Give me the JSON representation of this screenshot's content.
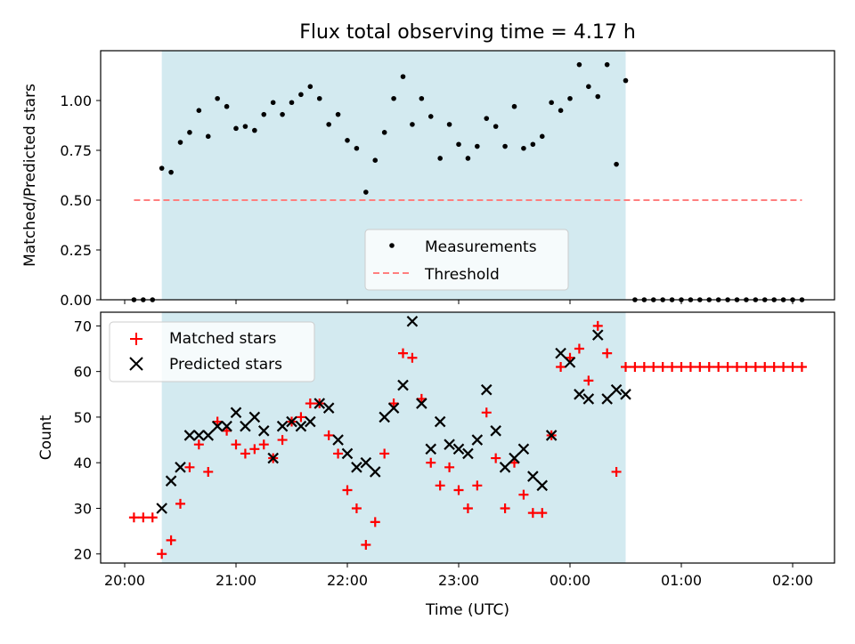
{
  "figure": {
    "title": "Flux total observing time = 4.17 h"
  },
  "chart_data": [
    {
      "type": "scatter",
      "title": "Flux total observing time = 4.17 h",
      "xlabel": "",
      "ylabel": "Matched/Predicted stars",
      "ylim": [
        0,
        1.25
      ],
      "yticks": [
        "0.00",
        "0.25",
        "0.50",
        "0.75",
        "1.00"
      ],
      "shaded_region": {
        "x": [
          "20:20",
          "00:30"
        ],
        "color": "#d3eaf0"
      },
      "legend": {
        "placement": "lower-center",
        "entries": [
          "Measurements",
          "Threshold"
        ]
      },
      "series": [
        {
          "name": "Measurements",
          "marker": "dot",
          "color": "#000000",
          "x": [
            "20:05",
            "20:10",
            "20:15",
            "20:20",
            "20:25",
            "20:30",
            "20:35",
            "20:40",
            "20:45",
            "20:50",
            "20:55",
            "21:00",
            "21:05",
            "21:10",
            "21:15",
            "21:20",
            "21:25",
            "21:30",
            "21:35",
            "21:40",
            "21:45",
            "21:50",
            "21:55",
            "22:00",
            "22:05",
            "22:10",
            "22:15",
            "22:20",
            "22:25",
            "22:30",
            "22:35",
            "22:40",
            "22:45",
            "22:50",
            "22:55",
            "23:00",
            "23:05",
            "23:10",
            "23:15",
            "23:20",
            "23:25",
            "23:30",
            "23:35",
            "23:40",
            "23:45",
            "23:50",
            "23:55",
            "00:00",
            "00:05",
            "00:10",
            "00:15",
            "00:20",
            "00:25",
            "00:30",
            "00:35",
            "00:40",
            "00:45",
            "00:50",
            "00:55",
            "01:00",
            "01:05",
            "01:10",
            "01:15",
            "01:20",
            "01:25",
            "01:30",
            "01:35",
            "01:40",
            "01:45",
            "01:50",
            "01:55",
            "02:00",
            "02:05"
          ],
          "y": [
            0.0,
            0.0,
            0.0,
            0.66,
            0.64,
            0.79,
            0.84,
            0.95,
            0.82,
            1.01,
            0.97,
            0.86,
            0.87,
            0.85,
            0.93,
            0.99,
            0.93,
            0.99,
            1.03,
            1.07,
            1.01,
            0.88,
            0.93,
            0.8,
            0.76,
            0.54,
            0.7,
            0.84,
            1.01,
            1.12,
            0.88,
            1.01,
            0.92,
            0.71,
            0.88,
            0.78,
            0.71,
            0.77,
            0.91,
            0.87,
            0.77,
            0.97,
            0.76,
            0.78,
            0.82,
            0.99,
            0.95,
            1.01,
            1.18,
            1.07,
            1.02,
            1.18,
            0.68,
            1.1,
            0.0,
            0.0,
            0.0,
            0.0,
            0.0,
            0.0,
            0.0,
            0.0,
            0.0,
            0.0,
            0.0,
            0.0,
            0.0,
            0.0,
            0.0,
            0.0,
            0.0,
            0.0,
            0.0
          ]
        },
        {
          "name": "Threshold",
          "style": "dashed",
          "color": "#ff7f7f",
          "x": [
            "20:05",
            "02:05"
          ],
          "y": [
            0.5,
            0.5
          ]
        }
      ]
    },
    {
      "type": "scatter",
      "xlabel": "Time (UTC)",
      "ylabel": "Count",
      "ylim": [
        18,
        73
      ],
      "yticks": [
        "20",
        "30",
        "40",
        "50",
        "60",
        "70"
      ],
      "xticks": [
        "20:00",
        "21:00",
        "22:00",
        "23:00",
        "00:00",
        "01:00",
        "02:00"
      ],
      "shaded_region": {
        "x": [
          "20:20",
          "00:30"
        ],
        "color": "#d3eaf0"
      },
      "legend": {
        "placement": "top-left",
        "entries": [
          "Matched stars",
          "Predicted stars"
        ]
      },
      "series": [
        {
          "name": "Matched stars",
          "marker": "plus",
          "color": "#ff0000",
          "x": [
            "20:05",
            "20:10",
            "20:15",
            "20:20",
            "20:25",
            "20:30",
            "20:35",
            "20:40",
            "20:45",
            "20:50",
            "20:55",
            "21:00",
            "21:05",
            "21:10",
            "21:15",
            "21:20",
            "21:25",
            "21:30",
            "21:35",
            "21:40",
            "21:45",
            "21:50",
            "21:55",
            "22:00",
            "22:05",
            "22:10",
            "22:15",
            "22:20",
            "22:25",
            "22:30",
            "22:35",
            "22:40",
            "22:45",
            "22:50",
            "22:55",
            "23:00",
            "23:05",
            "23:10",
            "23:15",
            "23:20",
            "23:25",
            "23:30",
            "23:35",
            "23:40",
            "23:45",
            "23:50",
            "23:55",
            "00:00",
            "00:05",
            "00:10",
            "00:15",
            "00:20",
            "00:25",
            "00:30",
            "00:35",
            "00:40",
            "00:45",
            "00:50",
            "00:55",
            "01:00",
            "01:05",
            "01:10",
            "01:15",
            "01:20",
            "01:25",
            "01:30",
            "01:35",
            "01:40",
            "01:45",
            "01:50",
            "01:55",
            "02:00",
            "02:05"
          ],
          "y": [
            28,
            28,
            28,
            20,
            23,
            31,
            39,
            44,
            38,
            49,
            47,
            44,
            42,
            43,
            44,
            41,
            45,
            49,
            50,
            53,
            53,
            46,
            42,
            34,
            30,
            22,
            27,
            42,
            53,
            64,
            63,
            54,
            40,
            35,
            39,
            34,
            30,
            35,
            51,
            41,
            30,
            40,
            33,
            29,
            29,
            46,
            61,
            63,
            65,
            58,
            70,
            64,
            38,
            61,
            61,
            61,
            61,
            61,
            61,
            61,
            61,
            61,
            61,
            61,
            61,
            61,
            61,
            61,
            61,
            61,
            61,
            61,
            61
          ]
        },
        {
          "name": "Predicted stars",
          "marker": "x",
          "color": "#000000",
          "x": [
            "20:20",
            "20:25",
            "20:30",
            "20:35",
            "20:40",
            "20:45",
            "20:50",
            "20:55",
            "21:00",
            "21:05",
            "21:10",
            "21:15",
            "21:20",
            "21:25",
            "21:30",
            "21:35",
            "21:40",
            "21:45",
            "21:50",
            "21:55",
            "22:00",
            "22:05",
            "22:10",
            "22:15",
            "22:20",
            "22:25",
            "22:30",
            "22:35",
            "22:40",
            "22:45",
            "22:50",
            "22:55",
            "23:00",
            "23:05",
            "23:10",
            "23:15",
            "23:20",
            "23:25",
            "23:30",
            "23:35",
            "23:40",
            "23:45",
            "23:50",
            "23:55",
            "00:00",
            "00:05",
            "00:10",
            "00:15",
            "00:20",
            "00:25",
            "00:30"
          ],
          "y": [
            30,
            36,
            39,
            46,
            46,
            46,
            48,
            48,
            51,
            48,
            50,
            47,
            41,
            48,
            49,
            48,
            49,
            53,
            52,
            45,
            42,
            39,
            40,
            38,
            50,
            52,
            57,
            71,
            53,
            43,
            49,
            44,
            43,
            42,
            45,
            56,
            47,
            39,
            41,
            43,
            37,
            35,
            46,
            64,
            62,
            55,
            54,
            68,
            54,
            56,
            55
          ]
        }
      ]
    }
  ]
}
